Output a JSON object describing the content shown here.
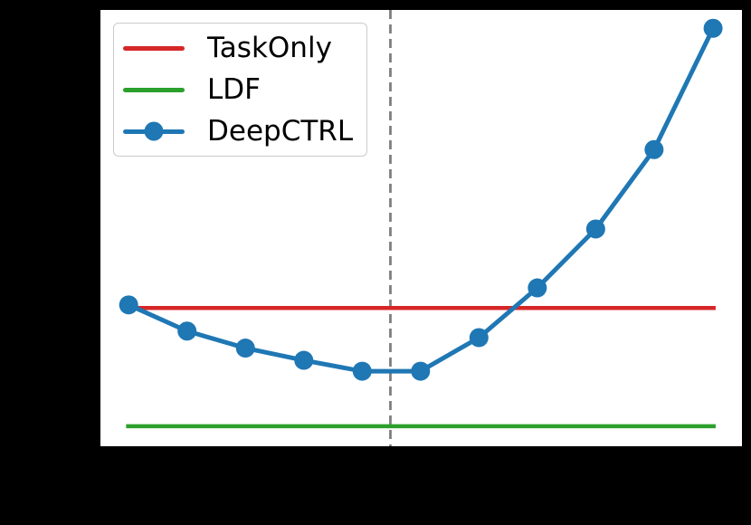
{
  "window": {
    "background_color": "#000000"
  },
  "plot": {
    "background_color": "#ffffff"
  },
  "legend": {
    "position": "upper-left",
    "items": [
      {
        "label": "TaskOnly",
        "color": "#d62728",
        "has_marker": false
      },
      {
        "label": "LDF",
        "color": "#2ca02c",
        "has_marker": false
      },
      {
        "label": "DeepCTRL",
        "color": "#1f77b4",
        "has_marker": true
      }
    ]
  },
  "chart_data": {
    "type": "line",
    "title": "",
    "xlabel": "",
    "ylabel": "",
    "grid": false,
    "legend_position": "upper left",
    "axes_visible_labels": "none (tick/axis labels not visible against black figure background)",
    "units": "normalized plot-area fractions: x_frac measured from left edge, y_frac from bottom edge",
    "series": [
      {
        "name": "TaskOnly",
        "style": "hline",
        "color": "#d62728",
        "y_frac": 0.317,
        "x_start_frac": 0.04,
        "x_end_frac": 0.959
      },
      {
        "name": "LDF",
        "style": "hline",
        "color": "#2ca02c",
        "y_frac": 0.046,
        "x_start_frac": 0.04,
        "x_end_frac": 0.959
      },
      {
        "name": "DeepCTRL",
        "style": "line-markers",
        "color": "#1f77b4",
        "x_frac": [
          0.044,
          0.135,
          0.226,
          0.317,
          0.408,
          0.499,
          0.59,
          0.681,
          0.772,
          0.863,
          0.955
        ],
        "y_frac": [
          0.324,
          0.264,
          0.225,
          0.197,
          0.172,
          0.172,
          0.249,
          0.363,
          0.498,
          0.68,
          0.958
        ]
      }
    ],
    "vline": {
      "x_frac": 0.452,
      "color": "#7f7f7f",
      "style": "dashed"
    }
  }
}
